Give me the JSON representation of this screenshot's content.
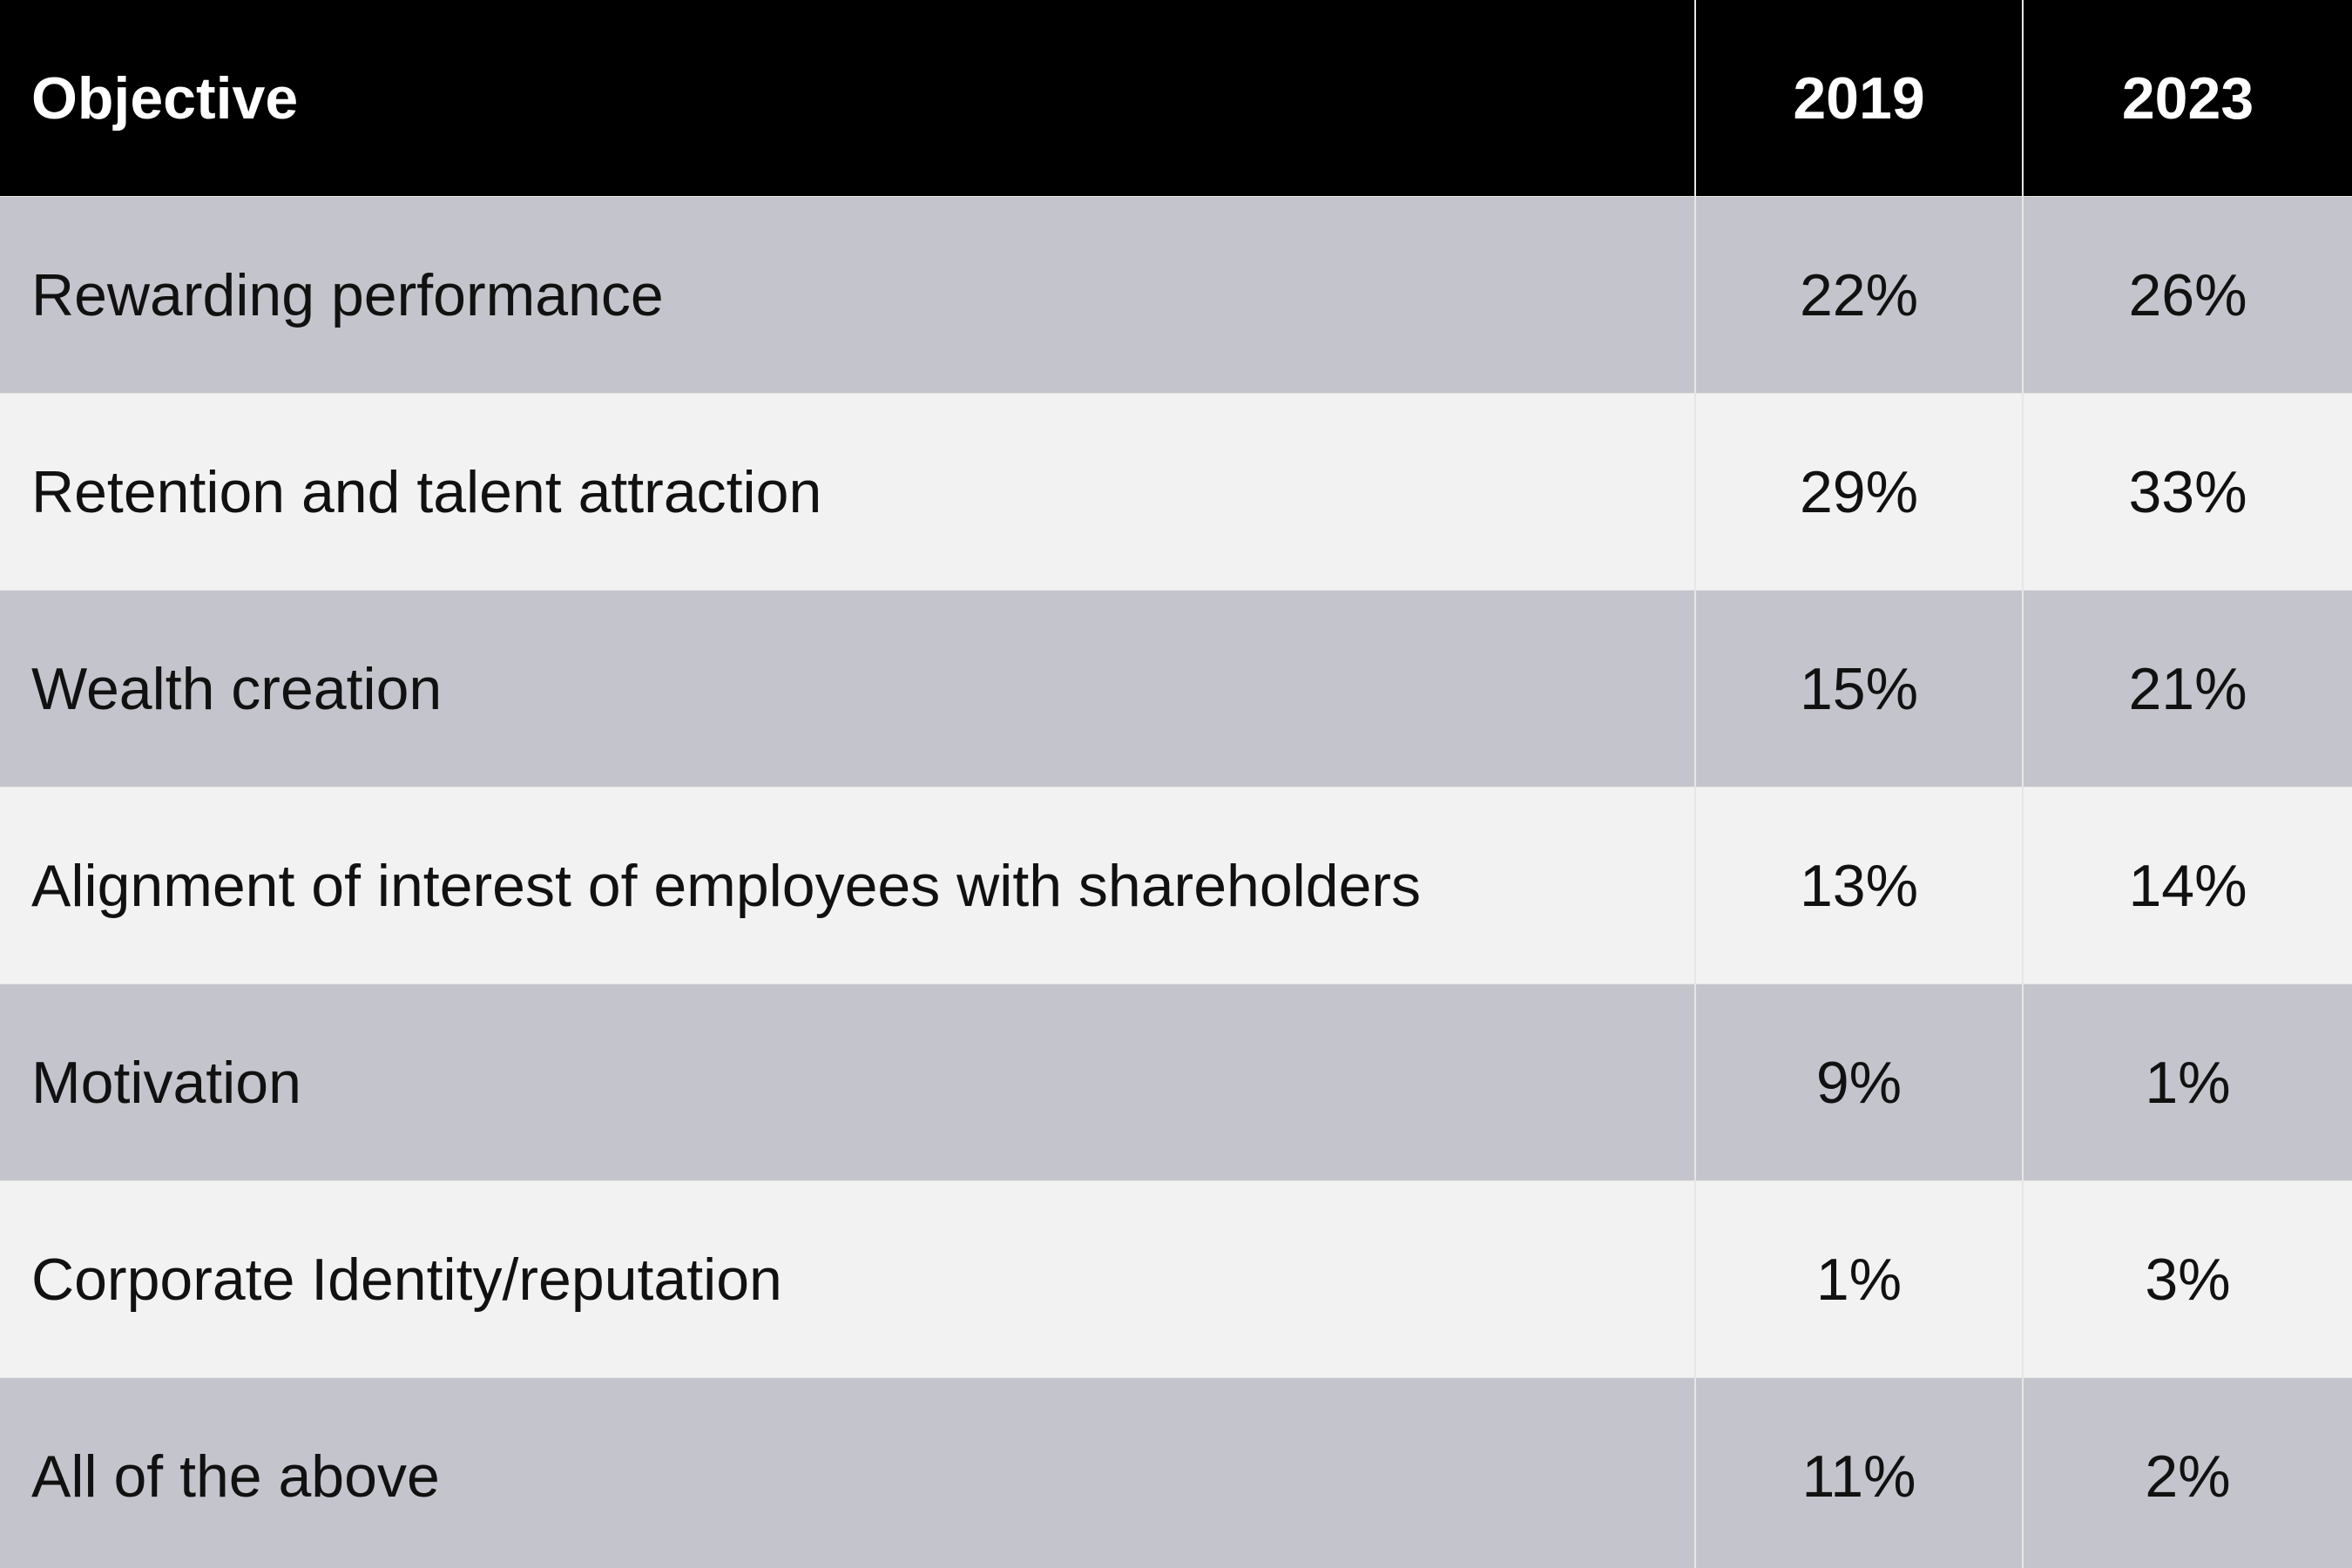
{
  "table": {
    "header": [
      "Objective",
      "2019",
      "2023"
    ],
    "rows": [
      [
        "Rewarding performance",
        "22%",
        "26%"
      ],
      [
        "Retention and talent attraction",
        "29%",
        "33%"
      ],
      [
        "Wealth creation",
        "15%",
        "21%"
      ],
      [
        "Alignment of interest of employees with shareholders",
        "13%",
        "14%"
      ],
      [
        "Motivation",
        "9%",
        "1%"
      ],
      [
        "Corporate Identity/reputation",
        "1%",
        "3%"
      ],
      [
        "All of the above",
        "11%",
        "2%"
      ]
    ]
  }
}
